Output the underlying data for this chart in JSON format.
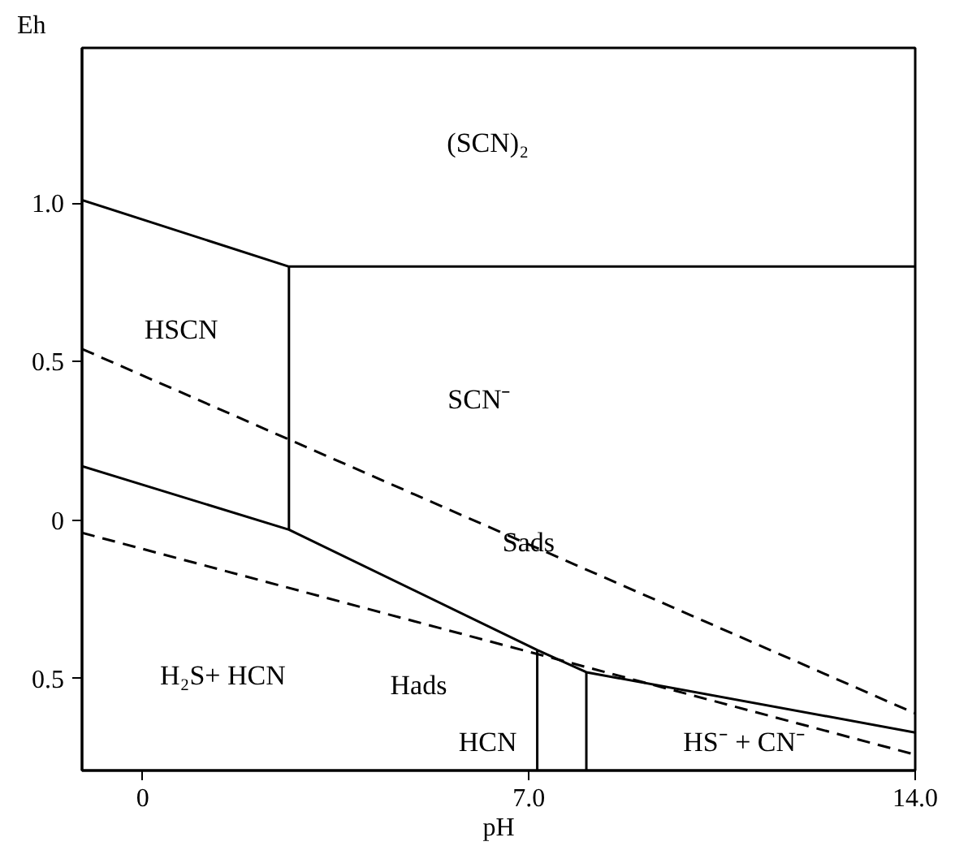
{
  "chart_data": {
    "type": "line",
    "xlabel": "pH",
    "ylabel": "Eh",
    "xlim": [
      -1.1,
      14.0
    ],
    "ylim": [
      -0.79,
      1.49
    ],
    "xticks": [
      0,
      {
        "value": 7.0,
        "label": "7.0"
      },
      {
        "value": 14.0,
        "label": "14.0"
      }
    ],
    "yticks": [
      {
        "value": -0.5,
        "label": "0.5"
      },
      0,
      {
        "value": 0.5,
        "label": "0.5"
      },
      {
        "value": 1.0,
        "label": "1.0"
      }
    ],
    "grid": false,
    "marker": "none",
    "series": [
      {
        "color": "#000000",
        "line_style": "solid",
        "x": [
          -1.1,
          2.65,
          14.0
        ],
        "values": [
          1.01,
          0.8,
          0.8
        ]
      },
      {
        "color": "#000000",
        "line_style": "solid",
        "x": [
          2.65,
          2.65
        ],
        "values": [
          0.8,
          -0.03
        ]
      },
      {
        "color": "#000000",
        "line_style": "solid",
        "x": [
          -1.1,
          2.65,
          7.15,
          8.04,
          14.0
        ],
        "values": [
          0.17,
          -0.03,
          -0.41,
          -0.48,
          -0.67
        ]
      },
      {
        "color": "#000000",
        "line_style": "solid",
        "x": [
          7.15,
          7.15
        ],
        "values": [
          -0.41,
          -0.79
        ]
      },
      {
        "color": "#000000",
        "line_style": "solid",
        "x": [
          8.04,
          8.04
        ],
        "values": [
          -0.48,
          -0.79
        ]
      },
      {
        "color": "#000000",
        "line_style": "dashed",
        "x": [
          -1.1,
          14.0
        ],
        "values": [
          0.54,
          -0.61
        ]
      },
      {
        "color": "#000000",
        "line_style": "dashed",
        "x": [
          -1.1,
          14.0
        ],
        "values": [
          -0.04,
          -0.74
        ]
      }
    ],
    "annotations": [
      "(SCN)₂",
      "HSCN",
      "SCN⁻",
      "Sads",
      "H₂S+ HCN",
      "Hads",
      "HCN",
      "HS⁻ + CN⁻"
    ]
  }
}
